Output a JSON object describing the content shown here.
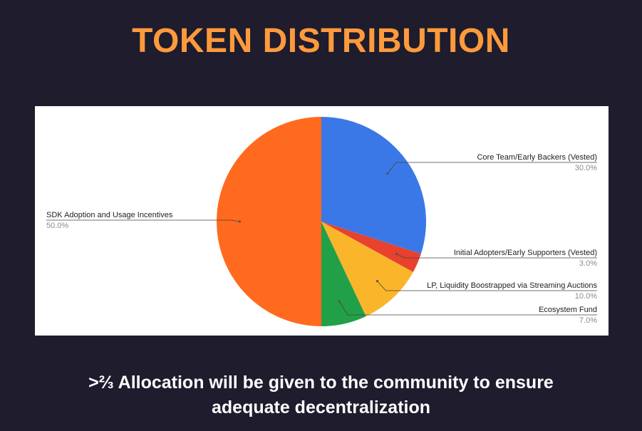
{
  "page": {
    "title": "TOKEN DISTRIBUTION",
    "caption_line1": ">⅔ Allocation will be given to the community to ensure",
    "caption_line2": "adequate decentralization"
  },
  "colors": {
    "background": "#1e1c2d",
    "title": "#ff9a3c",
    "caption": "#ffffff",
    "panel": "#ffffff"
  },
  "chart_data": {
    "type": "pie",
    "title": "",
    "slices": [
      {
        "label": "Core Team/Early Backers (Vested)",
        "value": 30.0,
        "percent_label": "30.0%",
        "color": "#3b78e7"
      },
      {
        "label": "Initial Adopters/Early Supporters (Vested)",
        "value": 3.0,
        "percent_label": "3.0%",
        "color": "#e8412e"
      },
      {
        "label": "LP, Liquidity Boostrapped via Streaming Auctions",
        "value": 10.0,
        "percent_label": "10.0%",
        "color": "#fbb52b"
      },
      {
        "label": "Ecosystem Fund",
        "value": 7.0,
        "percent_label": "7.0%",
        "color": "#22a048"
      },
      {
        "label": "SDK Adoption and Usage Incentives",
        "value": 50.0,
        "percent_label": "50.0%",
        "color": "#ff6a1f"
      }
    ],
    "start_angle": "12 o'clock",
    "direction": "clockwise",
    "legend": "none (leader-line labels)"
  }
}
